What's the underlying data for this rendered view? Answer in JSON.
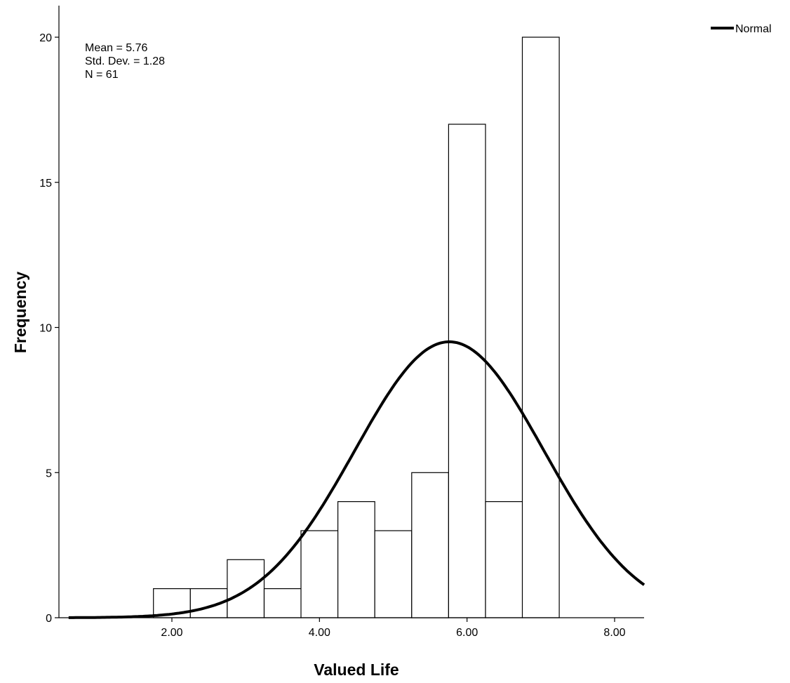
{
  "chart_data": {
    "type": "bar",
    "title": "",
    "xlabel": "Valued Life",
    "ylabel": "Frequency",
    "bin_width": 0.5,
    "bins": [
      {
        "start": 1.75,
        "end": 2.25,
        "count": 1
      },
      {
        "start": 2.25,
        "end": 2.75,
        "count": 1
      },
      {
        "start": 2.75,
        "end": 3.25,
        "count": 2
      },
      {
        "start": 3.25,
        "end": 3.75,
        "count": 1
      },
      {
        "start": 3.75,
        "end": 4.25,
        "count": 3
      },
      {
        "start": 4.25,
        "end": 4.75,
        "count": 4
      },
      {
        "start": 4.75,
        "end": 5.25,
        "count": 3
      },
      {
        "start": 5.25,
        "end": 5.75,
        "count": 5
      },
      {
        "start": 5.75,
        "end": 6.25,
        "count": 17
      },
      {
        "start": 6.25,
        "end": 6.75,
        "count": 4
      },
      {
        "start": 6.75,
        "end": 7.25,
        "count": 20
      }
    ],
    "xlim": [
      0.6,
      8.4
    ],
    "ylim": [
      0,
      21
    ],
    "x_ticks": [
      2,
      4,
      6,
      8
    ],
    "x_tick_labels": [
      "2.00",
      "4.00",
      "6.00",
      "8.00"
    ],
    "y_ticks": [
      0,
      5,
      10,
      15,
      20
    ],
    "y_tick_labels": [
      "0",
      "5",
      "10",
      "15",
      "20"
    ],
    "normal_curve": {
      "mean": 5.76,
      "sd": 1.28,
      "n": 61,
      "bin_width": 0.5
    },
    "stats_lines": [
      "Mean = 5.76",
      "Std. Dev. = 1.28",
      "N = 61"
    ],
    "legend": {
      "label": "Normal",
      "position": "top-right"
    },
    "grid": false,
    "colors": {
      "bar_fill": "#ffffff",
      "bar_stroke": "#000000",
      "curve": "#000000"
    }
  }
}
